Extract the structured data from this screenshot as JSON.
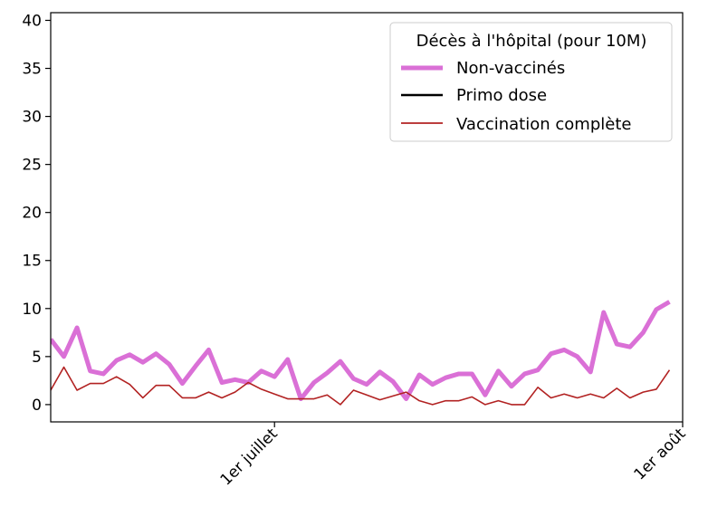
{
  "chart_data": {
    "type": "line",
    "x_start": "2021-06-14",
    "x_tick_labels": [
      {
        "label": "1er juillet",
        "date": "2021-07-01"
      },
      {
        "label": "1er août",
        "date": "2021-08-01"
      }
    ],
    "xlim": [
      "2021-06-14",
      "2021-08-01"
    ],
    "ylim": [
      -1.8,
      40.8
    ],
    "y_ticks": [
      0,
      5,
      10,
      15,
      20,
      25,
      30,
      35,
      40
    ],
    "grid": false,
    "legend": {
      "title": "Décès à l'hôpital (pour 10M)",
      "placement": "top-right"
    },
    "series": [
      {
        "name": "Non-vaccinés",
        "color": "#da70d6",
        "values": [
          6.8,
          5.0,
          8.0,
          3.5,
          3.2,
          4.6,
          5.2,
          4.4,
          5.3,
          4.2,
          2.2,
          4.0,
          5.7,
          2.3,
          2.6,
          2.3,
          3.5,
          2.9,
          4.7,
          0.6,
          2.3,
          3.3,
          4.5,
          2.7,
          2.1,
          3.4,
          2.4,
          0.6,
          3.1,
          2.1,
          2.8,
          3.2,
          3.2,
          1.0,
          3.5,
          1.9,
          3.2,
          3.6,
          5.3,
          5.7,
          5.0,
          3.4,
          9.6,
          6.3,
          6.0,
          7.5,
          9.9,
          10.7
        ]
      },
      {
        "name": "Primo dose",
        "color": "#000000",
        "values": []
      },
      {
        "name": "Vaccination complète",
        "color": "#b22222",
        "values": [
          1.5,
          3.9,
          1.5,
          2.2,
          2.2,
          2.9,
          2.1,
          0.7,
          2.0,
          2.0,
          0.7,
          0.7,
          1.3,
          0.7,
          1.3,
          2.3,
          1.6,
          1.1,
          0.6,
          0.6,
          0.6,
          1.0,
          0.0,
          1.5,
          1.0,
          0.5,
          0.9,
          1.3,
          0.4,
          0.0,
          0.4,
          0.4,
          0.8,
          0.0,
          0.4,
          0.0,
          0.0,
          1.8,
          0.7,
          1.1,
          0.7,
          1.1,
          0.7,
          1.7,
          0.7,
          1.3,
          1.6,
          3.6
        ]
      }
    ]
  }
}
